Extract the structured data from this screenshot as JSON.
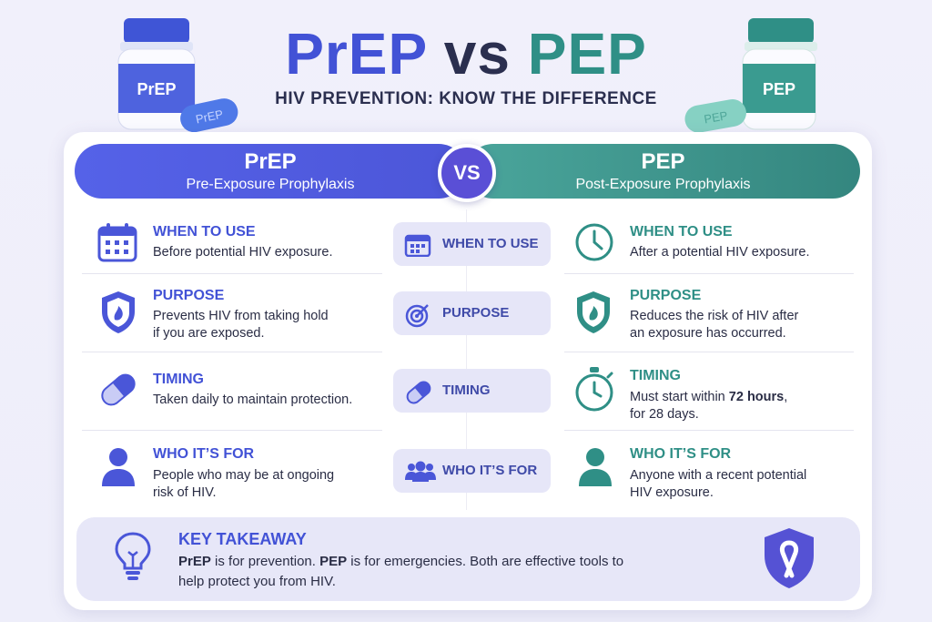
{
  "header": {
    "title_prep": "PrEP",
    "title_vs": "vs",
    "title_pep": "PEP",
    "subtitle": "HIV PREVENTION: KNOW THE DIFFERENCE",
    "bottle_left_label": "PrEP",
    "pill_left_label": "PrEP",
    "bottle_right_label": "PEP",
    "pill_right_label": "PEP"
  },
  "columns": {
    "left": {
      "name": "PrEP",
      "full": "Pre-Exposure Prophylaxis",
      "color": "#4c56d8"
    },
    "right": {
      "name": "PEP",
      "full": "Post-Exposure Prophylaxis",
      "color": "#34867f"
    },
    "vs": "VS"
  },
  "rows": [
    {
      "center": "WHEN TO USE",
      "left_label": "WHEN TO USE",
      "left_text": [
        "Before potential HIV exposure."
      ],
      "right_label": "WHEN TO USE",
      "right_text": [
        "After a potential HIV exposure."
      ],
      "left_icon": "calendar-icon",
      "center_icon": "calendar-icon",
      "right_icon": "clock-icon"
    },
    {
      "center": "PURPOSE",
      "left_label": "PURPOSE",
      "left_text": [
        "Prevents HIV from taking hold",
        "if you are exposed."
      ],
      "right_label": "PURPOSE",
      "right_text": [
        "Reduces the risk of HIV after",
        "an exposure has occurred."
      ],
      "left_icon": "shield-icon",
      "center_icon": "target-icon",
      "right_icon": "shield-icon"
    },
    {
      "center": "TIMING",
      "left_label": "TIMING",
      "left_text": [
        "Taken daily to maintain protection."
      ],
      "right_label": "TIMING",
      "right_text_pre": "Must start within ",
      "right_text_bold": "72 hours",
      "right_text_post": ",",
      "right_text2": "for 28 days.",
      "left_icon": "pill-icon",
      "center_icon": "pill-icon",
      "right_icon": "stopwatch-icon"
    },
    {
      "center": "WHO IT’S FOR",
      "left_label": "WHO IT’S FOR",
      "left_text": [
        "People who may be at ongoing",
        "risk of HIV."
      ],
      "right_label": "WHO IT’S FOR",
      "right_text": [
        "Anyone with a recent potential",
        "HIV exposure."
      ],
      "left_icon": "person-icon",
      "center_icon": "group-icon",
      "right_icon": "person-icon"
    }
  ],
  "takeaway": {
    "title": "KEY TAKEAWAY",
    "b1": "PrEP",
    "t1": " is for prevention. ",
    "b2": "PEP",
    "t2": " is for emergencies. Both are effective tools to",
    "line2": "help protect you from HIV.",
    "icons": [
      "lightbulb-icon",
      "ribbon-shield-icon"
    ]
  }
}
